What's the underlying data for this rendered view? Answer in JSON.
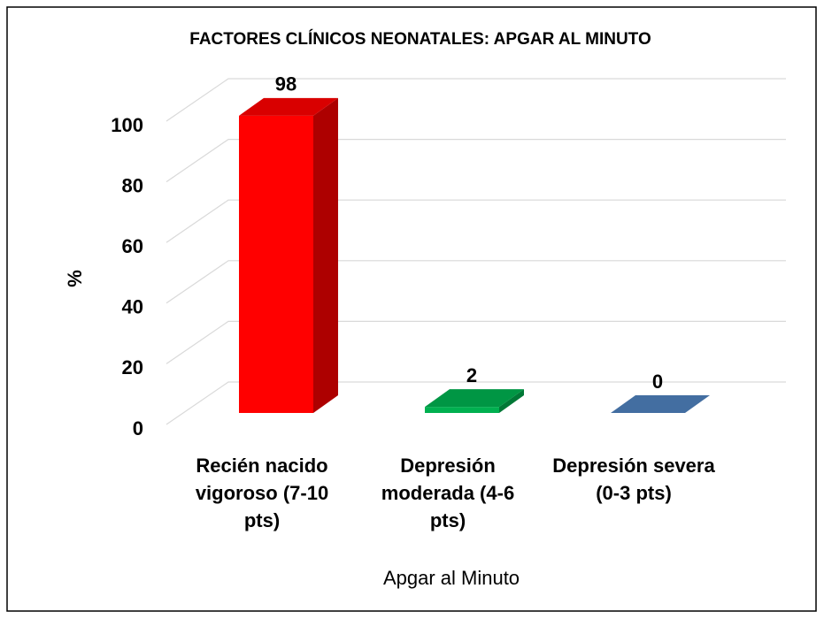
{
  "chart_data": {
    "type": "bar3d",
    "title": "FACTORES CLÍNICOS NEONATALES: APGAR AL MINUTO",
    "x_label": "Apgar al Minuto",
    "y_label": "%",
    "categories": [
      "Recién nacido vigoroso (7-10 pts)",
      "Depresión moderada (4-6 pts)",
      "Depresión severa (0-3 pts)"
    ],
    "values": [
      98,
      2,
      0
    ],
    "colors": [
      "#ff0000",
      "#00b050",
      "#4f81bd"
    ],
    "ylim": [
      0,
      100
    ],
    "yticks": [
      0,
      20,
      40,
      60,
      80,
      100
    ],
    "grid": true
  }
}
